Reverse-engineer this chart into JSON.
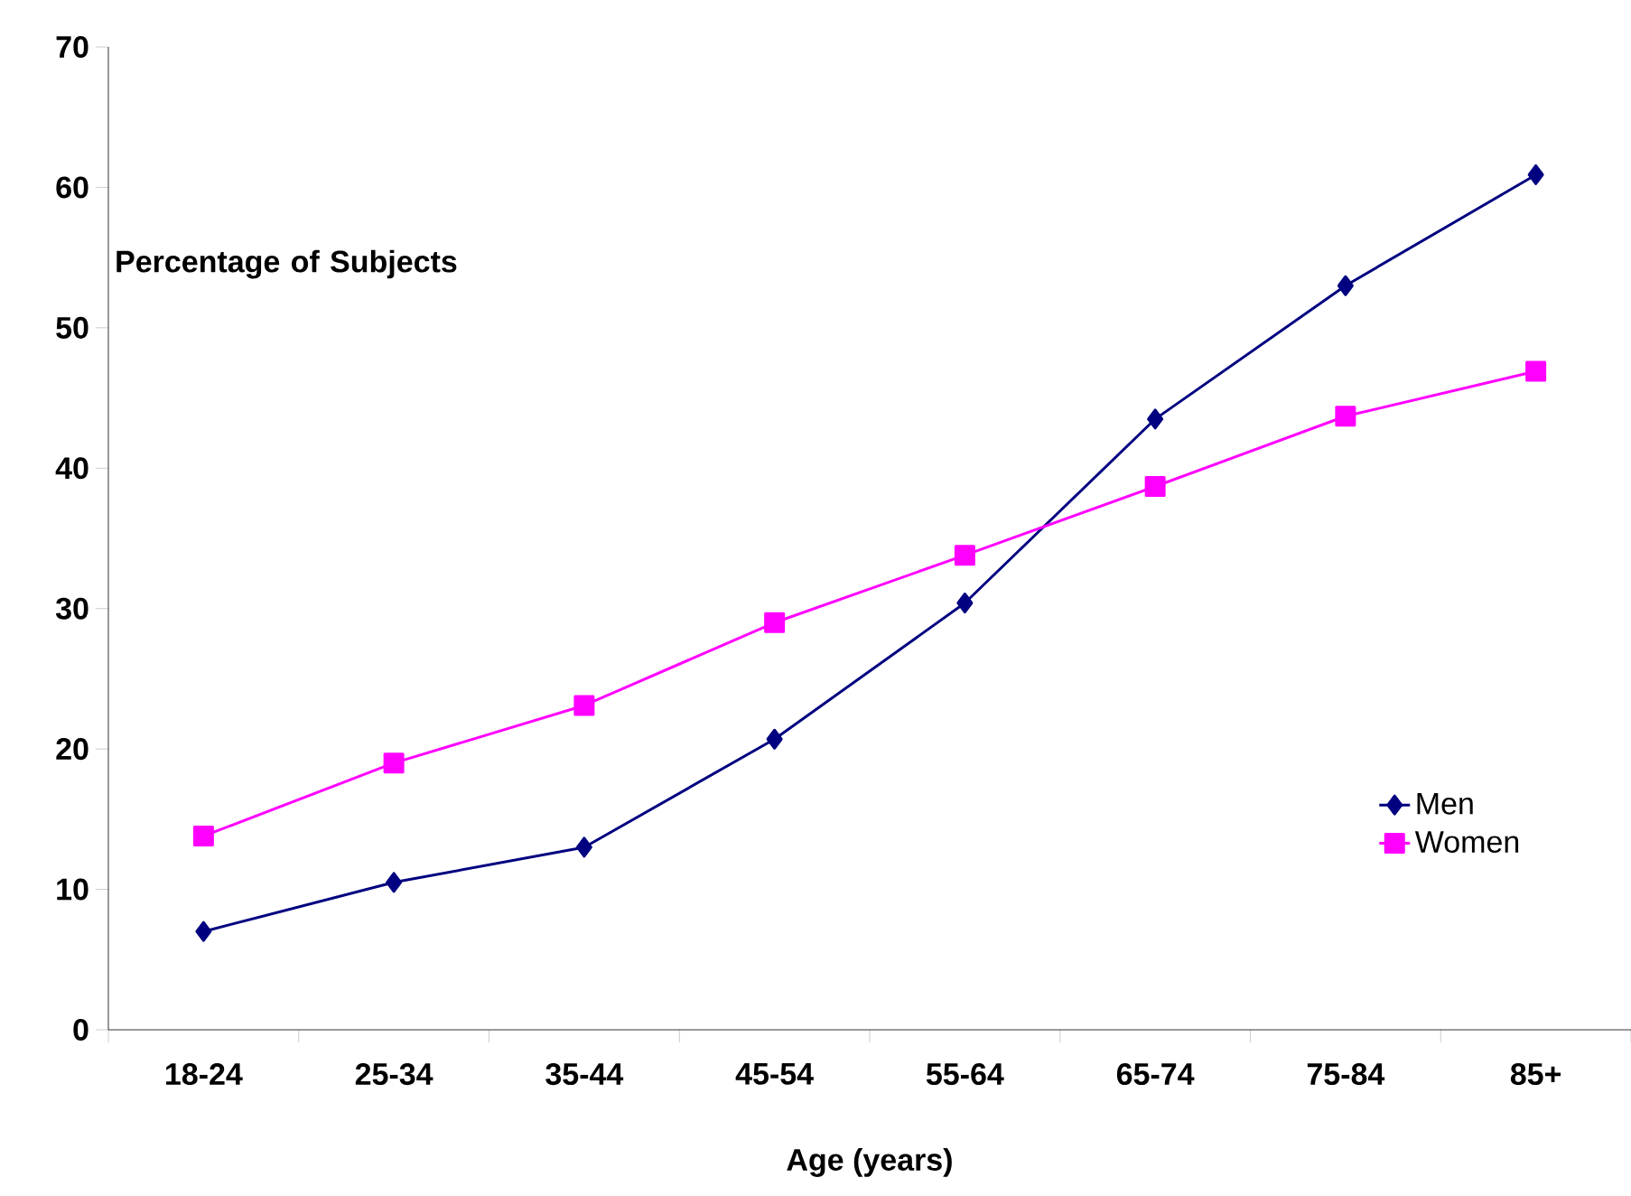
{
  "chart_data": {
    "type": "line",
    "xlabel": "Age (years)",
    "ylabel": "Percentage of Subjects",
    "categories": [
      "18-24",
      "25-34",
      "35-44",
      "45-54",
      "55-64",
      "65-74",
      "75-84",
      "85+"
    ],
    "series": [
      {
        "name": "Men",
        "color": "#000080",
        "marker": "diamond",
        "values": [
          7.0,
          10.5,
          13.0,
          20.7,
          30.4,
          43.5,
          53.0,
          60.9
        ]
      },
      {
        "name": "Women",
        "color": "#ff00ff",
        "marker": "square",
        "values": [
          13.8,
          19.0,
          23.1,
          29.0,
          33.8,
          38.7,
          43.7,
          46.9
        ]
      }
    ],
    "ylim": [
      0,
      70
    ],
    "yticks": [
      0,
      10,
      20,
      30,
      40,
      50,
      60,
      70
    ],
    "legend": "right",
    "grid": false
  }
}
